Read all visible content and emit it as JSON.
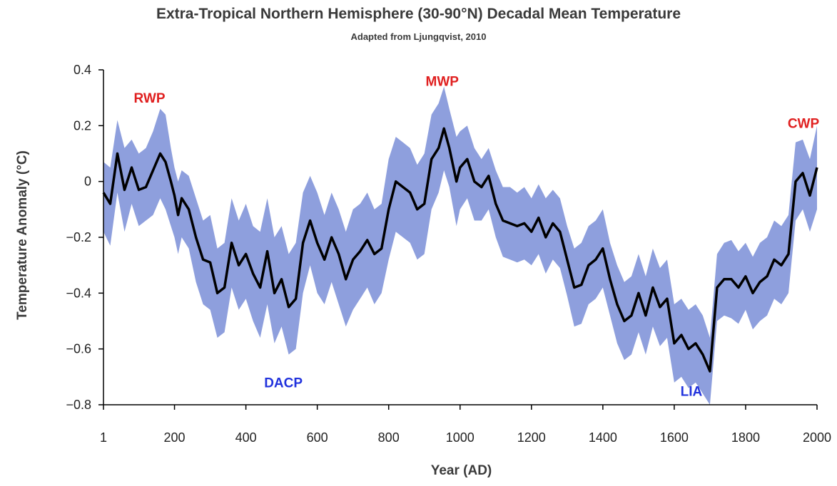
{
  "chart_data": {
    "type": "line",
    "title": "Extra-Tropical Northern Hemisphere (30-90°N) Decadal Mean Temperature",
    "subtitle": "Adapted from Ljungqvist, 2010",
    "xlabel": "Year (AD)",
    "ylabel": "Temperature Anomaly (°C)",
    "xlim": [
      1,
      2000
    ],
    "ylim": [
      -0.8,
      0.4
    ],
    "xticks": [
      "1",
      "200",
      "400",
      "600",
      "800",
      "1000",
      "1200",
      "1400",
      "1600",
      "1800",
      "2000"
    ],
    "yticks": [
      "0.4",
      "0.2",
      "0",
      "−0.2",
      "−0.4",
      "−0.6",
      "−0.8"
    ],
    "band_color": "#8e9fdd",
    "line_color": "#000000",
    "series": [
      {
        "x": [
          1,
          20,
          40,
          60,
          80,
          100,
          120,
          140,
          160,
          175,
          190,
          200,
          210,
          220,
          240,
          260,
          280,
          300,
          320,
          340,
          360,
          380,
          400,
          420,
          440,
          460,
          480,
          500,
          520,
          540,
          560,
          580,
          600,
          620,
          640,
          660,
          680,
          700,
          720,
          740,
          760,
          780,
          800,
          820,
          840,
          860,
          880,
          900,
          920,
          940,
          955,
          970,
          990,
          1000,
          1020,
          1040,
          1060,
          1080,
          1100,
          1120,
          1140,
          1160,
          1180,
          1200,
          1220,
          1240,
          1260,
          1280,
          1300,
          1320,
          1340,
          1360,
          1380,
          1400,
          1420,
          1440,
          1460,
          1480,
          1500,
          1520,
          1540,
          1560,
          1580,
          1600,
          1620,
          1640,
          1660,
          1680,
          1700,
          1720,
          1740,
          1760,
          1780,
          1800,
          1820,
          1840,
          1860,
          1880,
          1900,
          1920,
          1940,
          1960,
          1980,
          2000
        ],
        "y": [
          -0.04,
          -0.08,
          0.1,
          -0.03,
          0.05,
          -0.03,
          -0.02,
          0.04,
          0.1,
          0.07,
          0.0,
          -0.05,
          -0.12,
          -0.06,
          -0.1,
          -0.2,
          -0.28,
          -0.29,
          -0.4,
          -0.38,
          -0.22,
          -0.3,
          -0.26,
          -0.33,
          -0.38,
          -0.25,
          -0.4,
          -0.35,
          -0.45,
          -0.42,
          -0.22,
          -0.14,
          -0.22,
          -0.28,
          -0.2,
          -0.26,
          -0.35,
          -0.28,
          -0.25,
          -0.21,
          -0.26,
          -0.24,
          -0.1,
          0.0,
          -0.02,
          -0.04,
          -0.1,
          -0.08,
          0.08,
          0.12,
          0.19,
          0.12,
          0.0,
          0.05,
          0.08,
          0.0,
          -0.02,
          0.02,
          -0.08,
          -0.14,
          -0.15,
          -0.16,
          -0.15,
          -0.18,
          -0.13,
          -0.2,
          -0.15,
          -0.18,
          -0.28,
          -0.38,
          -0.37,
          -0.3,
          -0.28,
          -0.24,
          -0.35,
          -0.44,
          -0.5,
          -0.48,
          -0.4,
          -0.48,
          -0.38,
          -0.45,
          -0.42,
          -0.58,
          -0.55,
          -0.6,
          -0.58,
          -0.62,
          -0.68,
          -0.38,
          -0.35,
          -0.35,
          -0.38,
          -0.34,
          -0.4,
          -0.36,
          -0.34,
          -0.28,
          -0.3,
          -0.26,
          0.0,
          0.03,
          -0.05,
          0.05
        ]
      }
    ],
    "band": {
      "upper": [
        0.07,
        0.05,
        0.22,
        0.12,
        0.15,
        0.1,
        0.12,
        0.18,
        0.26,
        0.24,
        0.12,
        0.05,
        0.0,
        0.04,
        0.02,
        -0.06,
        -0.14,
        -0.12,
        -0.24,
        -0.22,
        -0.06,
        -0.14,
        -0.08,
        -0.16,
        -0.18,
        -0.06,
        -0.2,
        -0.16,
        -0.26,
        -0.22,
        -0.04,
        0.02,
        -0.04,
        -0.12,
        -0.04,
        -0.1,
        -0.18,
        -0.1,
        -0.08,
        -0.04,
        -0.1,
        -0.08,
        0.08,
        0.16,
        0.14,
        0.12,
        0.06,
        0.1,
        0.24,
        0.28,
        0.34,
        0.26,
        0.16,
        0.18,
        0.2,
        0.12,
        0.08,
        0.12,
        0.04,
        -0.02,
        -0.02,
        -0.04,
        -0.02,
        -0.06,
        -0.01,
        -0.06,
        -0.03,
        -0.06,
        -0.16,
        -0.24,
        -0.22,
        -0.16,
        -0.14,
        -0.1,
        -0.22,
        -0.3,
        -0.36,
        -0.34,
        -0.26,
        -0.34,
        -0.24,
        -0.31,
        -0.28,
        -0.44,
        -0.42,
        -0.46,
        -0.44,
        -0.48,
        -0.56,
        -0.26,
        -0.22,
        -0.21,
        -0.25,
        -0.22,
        -0.27,
        -0.22,
        -0.2,
        -0.14,
        -0.16,
        -0.12,
        0.14,
        0.15,
        0.08,
        0.2
      ],
      "lower": [
        -0.18,
        -0.23,
        -0.04,
        -0.18,
        -0.08,
        -0.16,
        -0.14,
        -0.12,
        -0.06,
        -0.1,
        -0.16,
        -0.2,
        -0.26,
        -0.2,
        -0.24,
        -0.36,
        -0.44,
        -0.46,
        -0.56,
        -0.54,
        -0.38,
        -0.46,
        -0.42,
        -0.5,
        -0.56,
        -0.44,
        -0.58,
        -0.52,
        -0.62,
        -0.6,
        -0.4,
        -0.3,
        -0.4,
        -0.44,
        -0.36,
        -0.44,
        -0.52,
        -0.46,
        -0.42,
        -0.38,
        -0.44,
        -0.4,
        -0.28,
        -0.18,
        -0.2,
        -0.22,
        -0.28,
        -0.26,
        -0.1,
        -0.04,
        0.04,
        -0.02,
        -0.16,
        -0.1,
        -0.06,
        -0.14,
        -0.14,
        -0.1,
        -0.2,
        -0.27,
        -0.28,
        -0.29,
        -0.28,
        -0.3,
        -0.26,
        -0.33,
        -0.28,
        -0.31,
        -0.41,
        -0.52,
        -0.51,
        -0.44,
        -0.42,
        -0.38,
        -0.48,
        -0.58,
        -0.64,
        -0.62,
        -0.54,
        -0.62,
        -0.52,
        -0.59,
        -0.56,
        -0.72,
        -0.7,
        -0.74,
        -0.72,
        -0.76,
        -0.8,
        -0.5,
        -0.48,
        -0.49,
        -0.51,
        -0.46,
        -0.53,
        -0.5,
        -0.48,
        -0.42,
        -0.44,
        -0.4,
        -0.14,
        -0.1,
        -0.18,
        -0.1
      ]
    },
    "annotations": [
      {
        "text": "RWP",
        "x": 130,
        "y": 0.3,
        "color": "#e02020"
      },
      {
        "text": "MWP",
        "x": 950,
        "y": 0.36,
        "color": "#e02020"
      },
      {
        "text": "CWP",
        "x": 1962,
        "y": 0.21,
        "color": "#e02020"
      },
      {
        "text": "DACP",
        "x": 505,
        "y": -0.72,
        "color": "#2233dd"
      },
      {
        "text": "LIA",
        "x": 1648,
        "y": -0.75,
        "color": "#2233dd"
      }
    ]
  }
}
